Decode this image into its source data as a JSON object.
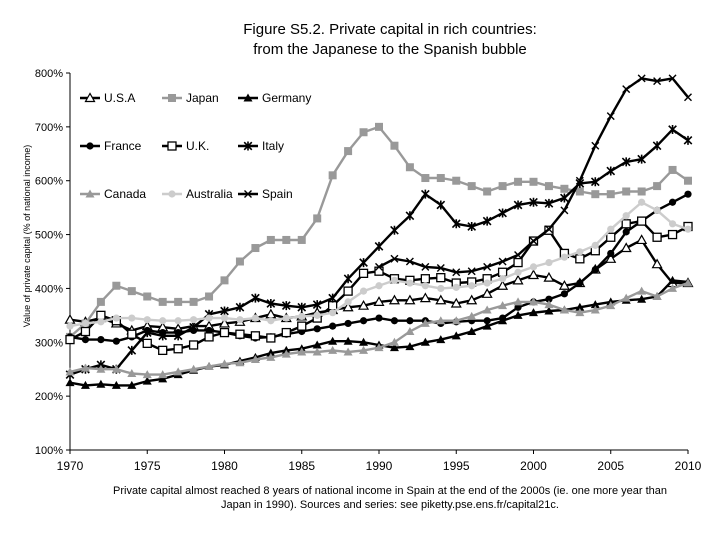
{
  "chart_data": {
    "type": "line",
    "title": "Figure S5.2. Private capital in rich countries:",
    "subtitle": "from the Japanese to the Spanish bubble",
    "caption_line1": "Private capital almost reached 8 years of national income in Spain at the end of the 2000s (ie. one more year than",
    "caption_line2": "Japan in 1990). Sources and series: see piketty.pse.ens.fr/capital21c.",
    "ylabel": "Value of private capital (% of national income)",
    "xlabel": "",
    "xlim": [
      1970,
      2010
    ],
    "ylim": [
      100,
      800
    ],
    "x_ticks": [
      1970,
      1975,
      1980,
      1985,
      1990,
      1995,
      2000,
      2005,
      2010
    ],
    "y_ticks": [
      100,
      200,
      300,
      400,
      500,
      600,
      700,
      800
    ],
    "y_tick_labels": [
      "100%",
      "200%",
      "300%",
      "400%",
      "500%",
      "600%",
      "700%",
      "800%"
    ],
    "grid": false,
    "legend_position": "top-left",
    "x": [
      1970,
      1971,
      1972,
      1973,
      1974,
      1975,
      1976,
      1977,
      1978,
      1979,
      1980,
      1981,
      1982,
      1983,
      1984,
      1985,
      1986,
      1987,
      1988,
      1989,
      1990,
      1991,
      1992,
      1993,
      1994,
      1995,
      1996,
      1997,
      1998,
      1999,
      2000,
      2001,
      2002,
      2003,
      2004,
      2005,
      2006,
      2007,
      2008,
      2009,
      2010
    ],
    "series": [
      {
        "name": "U.S.A",
        "color": "#000000",
        "marker": "triangle-open",
        "values": [
          342,
          338,
          345,
          335,
          322,
          330,
          328,
          325,
          330,
          330,
          335,
          338,
          345,
          352,
          345,
          348,
          355,
          360,
          365,
          368,
          375,
          378,
          378,
          382,
          378,
          372,
          378,
          390,
          405,
          415,
          425,
          420,
          405,
          410,
          435,
          455,
          475,
          490,
          445,
          410,
          410
        ]
      },
      {
        "name": "Japan",
        "color": "#999999",
        "marker": "square",
        "values": [
          310,
          335,
          375,
          405,
          395,
          385,
          375,
          375,
          375,
          385,
          415,
          450,
          475,
          490,
          490,
          490,
          530,
          610,
          655,
          690,
          700,
          665,
          625,
          605,
          605,
          600,
          590,
          580,
          590,
          598,
          598,
          590,
          585,
          580,
          575,
          575,
          580,
          580,
          590,
          620,
          600
        ]
      },
      {
        "name": "Germany",
        "color": "#000000",
        "marker": "triangle",
        "values": [
          225,
          220,
          222,
          220,
          220,
          228,
          232,
          240,
          248,
          255,
          258,
          265,
          272,
          280,
          285,
          288,
          295,
          302,
          302,
          300,
          295,
          290,
          292,
          300,
          305,
          312,
          320,
          330,
          340,
          350,
          355,
          358,
          360,
          365,
          370,
          375,
          378,
          380,
          385,
          415,
          412
        ]
      },
      {
        "name": "France",
        "color": "#000000",
        "marker": "circle",
        "values": [
          310,
          305,
          305,
          302,
          310,
          322,
          318,
          318,
          322,
          322,
          318,
          312,
          308,
          310,
          315,
          320,
          325,
          330,
          335,
          340,
          345,
          340,
          340,
          340,
          335,
          338,
          340,
          340,
          345,
          365,
          375,
          380,
          390,
          410,
          435,
          465,
          505,
          525,
          545,
          560,
          575
        ]
      },
      {
        "name": "U.K.",
        "color": "#000000",
        "marker": "square-open",
        "values": [
          305,
          320,
          350,
          340,
          315,
          298,
          285,
          288,
          295,
          310,
          318,
          315,
          312,
          308,
          318,
          330,
          345,
          368,
          395,
          428,
          432,
          418,
          415,
          418,
          420,
          410,
          412,
          418,
          430,
          448,
          488,
          508,
          465,
          455,
          470,
          495,
          520,
          525,
          495,
          500,
          515
        ]
      },
      {
        "name": "Italy",
        "color": "#000000",
        "marker": "star",
        "values": [
          240,
          250,
          258,
          250,
          285,
          318,
          312,
          312,
          328,
          352,
          358,
          365,
          382,
          372,
          368,
          365,
          370,
          382,
          418,
          448,
          478,
          508,
          535,
          575,
          555,
          520,
          515,
          525,
          540,
          555,
          560,
          558,
          568,
          595,
          598,
          618,
          635,
          640,
          665,
          695,
          675
        ]
      },
      {
        "name": "Canada",
        "color": "#999999",
        "marker": "triangle",
        "values": [
          245,
          252,
          250,
          250,
          242,
          240,
          240,
          245,
          250,
          255,
          260,
          262,
          268,
          272,
          278,
          282,
          282,
          285,
          282,
          285,
          290,
          300,
          320,
          335,
          340,
          340,
          348,
          360,
          368,
          375,
          375,
          370,
          360,
          355,
          360,
          368,
          382,
          395,
          385,
          400,
          410
        ]
      },
      {
        "name": "Australia",
        "color": "#cccccc",
        "marker": "circle",
        "values": [
          330,
          335,
          338,
          345,
          345,
          342,
          340,
          340,
          342,
          345,
          345,
          342,
          345,
          340,
          345,
          348,
          350,
          355,
          375,
          395,
          405,
          415,
          410,
          405,
          400,
          402,
          405,
          410,
          418,
          430,
          440,
          448,
          458,
          468,
          480,
          510,
          535,
          560,
          545,
          520,
          510
        ]
      },
      {
        "name": "Spain",
        "color": "#000000",
        "marker": "x",
        "values": [
          null,
          null,
          null,
          null,
          null,
          null,
          null,
          null,
          null,
          null,
          null,
          null,
          null,
          null,
          null,
          null,
          null,
          null,
          null,
          null,
          440,
          455,
          450,
          440,
          438,
          430,
          432,
          440,
          450,
          462,
          488,
          510,
          545,
          600,
          665,
          720,
          770,
          790,
          785,
          790,
          755
        ]
      }
    ]
  }
}
